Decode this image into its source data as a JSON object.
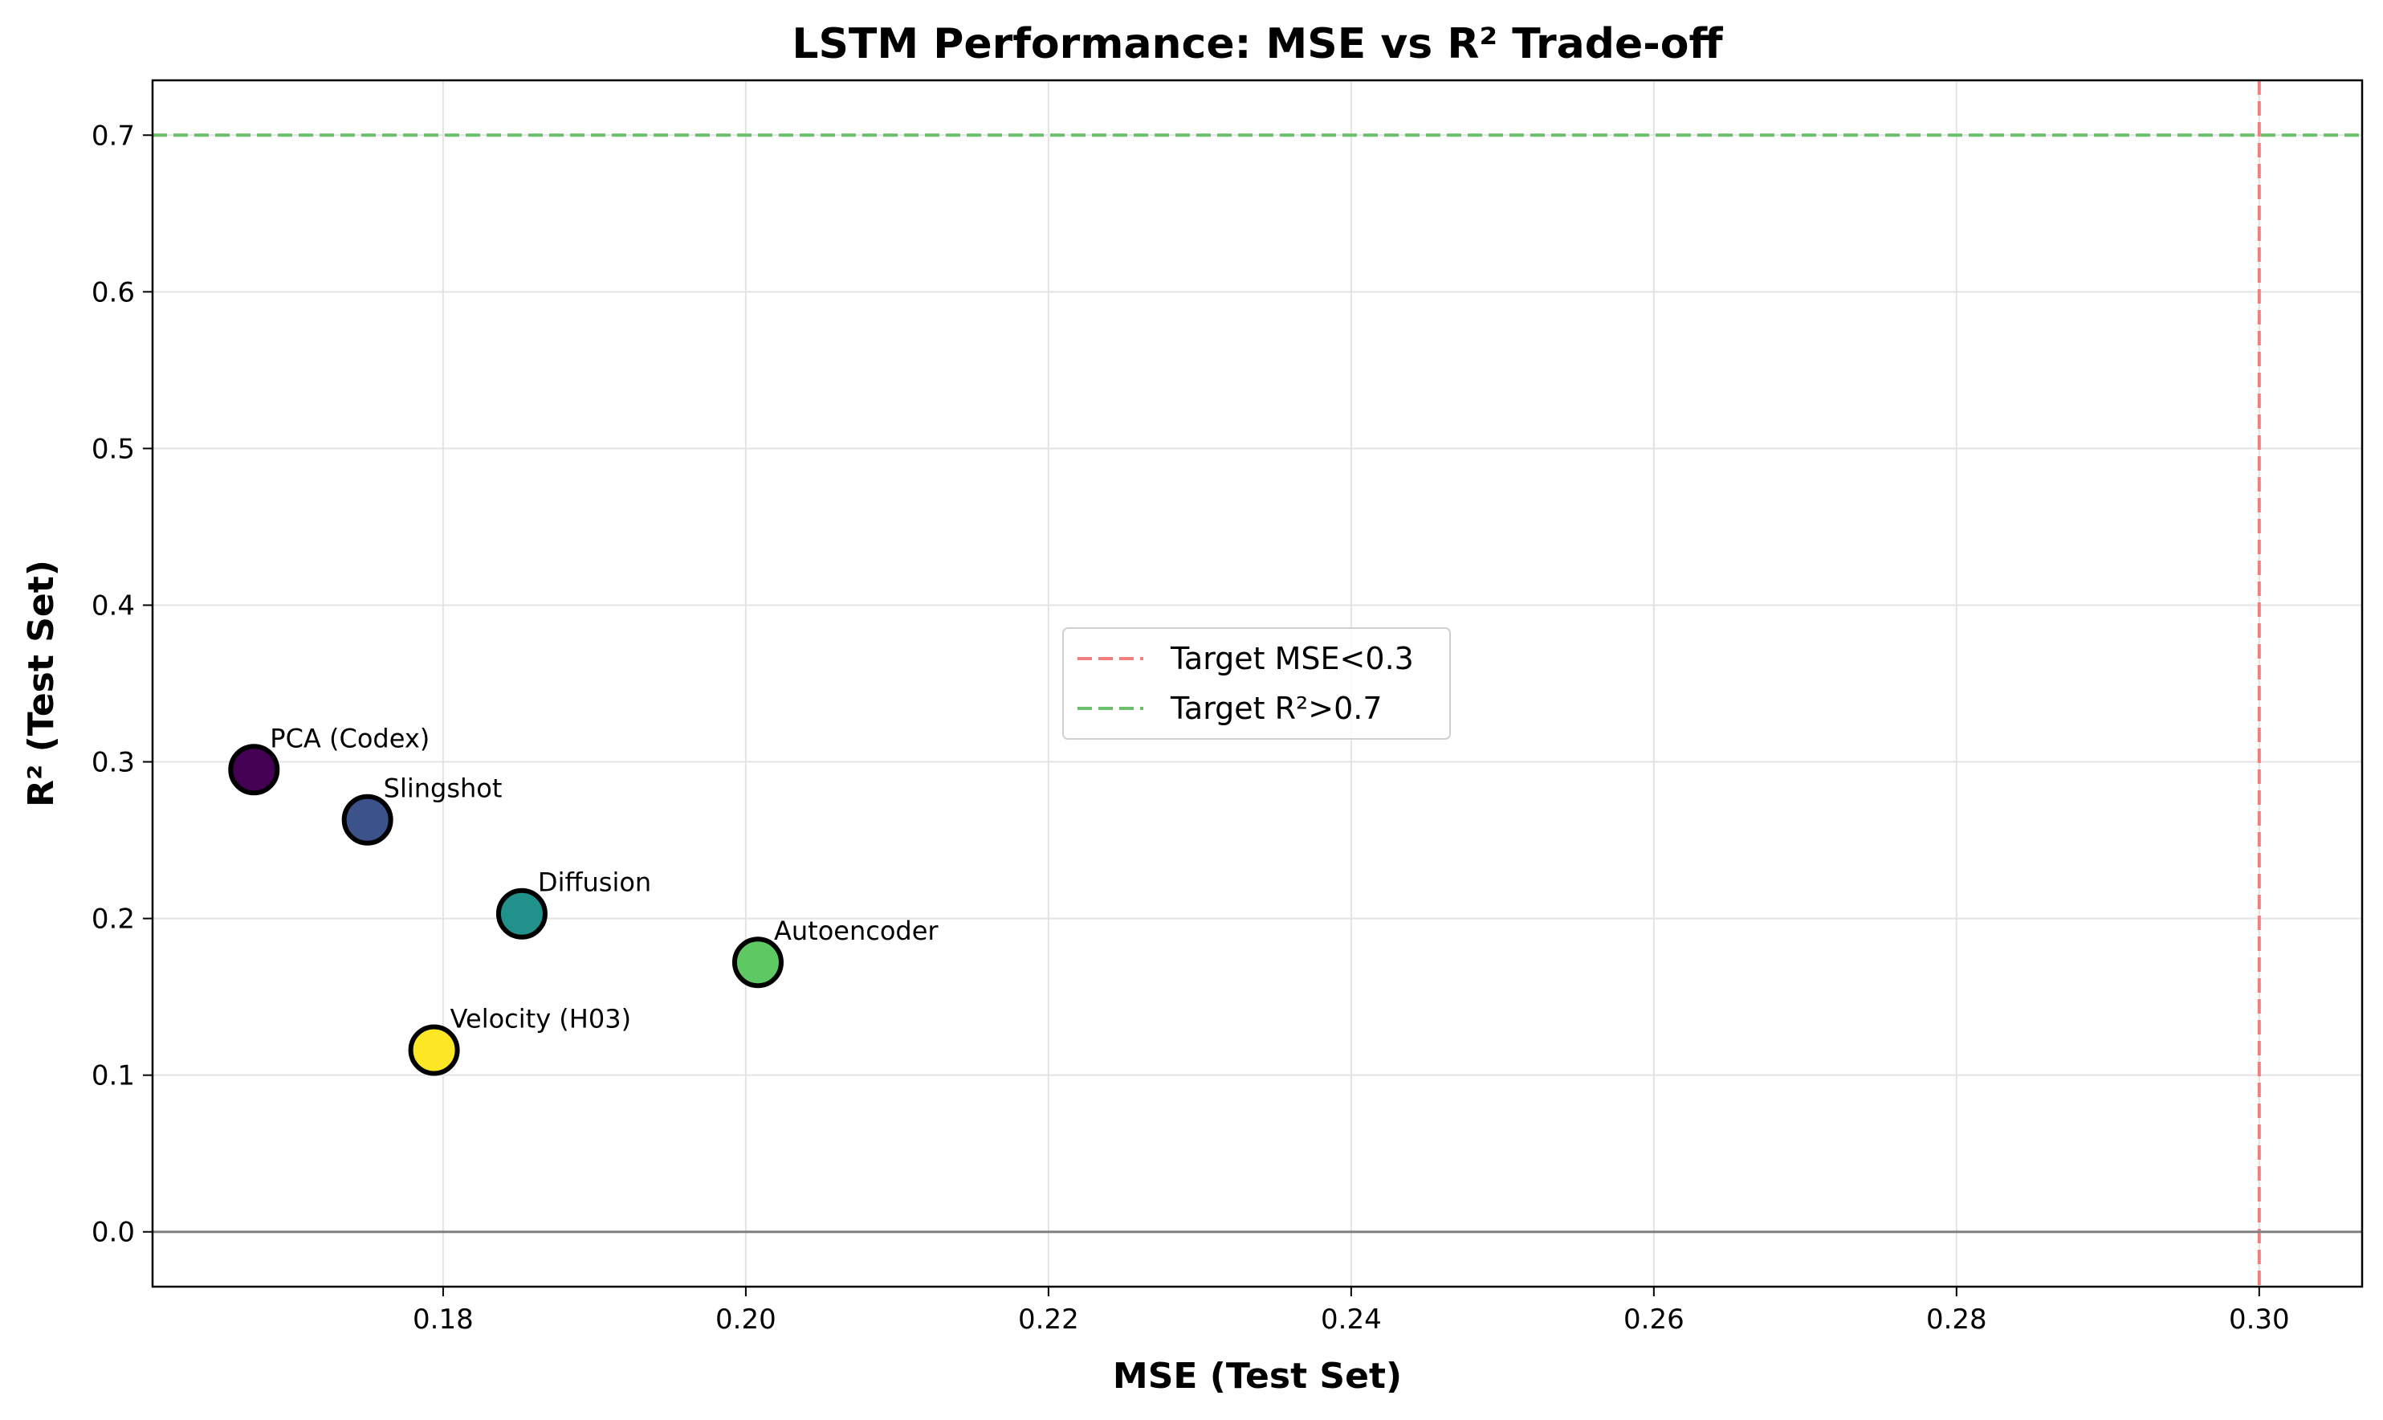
{
  "chart_data": {
    "type": "scatter",
    "title": "LSTM Performance: MSE vs R² Trade-off",
    "xlabel": "MSE (Test Set)",
    "ylabel": "R² (Test Set)",
    "xlim": [
      0.1608,
      0.3068
    ],
    "ylim": [
      -0.035,
      0.735
    ],
    "xticks": [
      0.18,
      0.2,
      0.22,
      0.24,
      0.26,
      0.28,
      0.3
    ],
    "xtick_labels": [
      "0.18",
      "0.20",
      "0.22",
      "0.24",
      "0.26",
      "0.28",
      "0.30"
    ],
    "yticks": [
      0.0,
      0.1,
      0.2,
      0.3,
      0.4,
      0.5,
      0.6,
      0.7
    ],
    "ytick_labels": [
      "0.0",
      "0.1",
      "0.2",
      "0.3",
      "0.4",
      "0.5",
      "0.6",
      "0.7"
    ],
    "grid": true,
    "legend_placement": "center",
    "points": [
      {
        "label": "PCA (Codex)",
        "x": 0.1675,
        "y": 0.295,
        "color": "#440154"
      },
      {
        "label": "Slingshot",
        "x": 0.175,
        "y": 0.263,
        "color": "#3b528b"
      },
      {
        "label": "Diffusion",
        "x": 0.1852,
        "y": 0.203,
        "color": "#21918c"
      },
      {
        "label": "Autoencoder",
        "x": 0.2008,
        "y": 0.172,
        "color": "#5ec962"
      },
      {
        "label": "Velocity (H03)",
        "x": 0.1794,
        "y": 0.116,
        "color": "#fde725"
      }
    ],
    "reference_lines": [
      {
        "orientation": "vertical",
        "value": 0.3,
        "label": "Target MSE<0.3",
        "color": "#f08080",
        "style": "dashed"
      },
      {
        "orientation": "horizontal",
        "value": 0.7,
        "label": "Target R²>0.7",
        "color": "#6cbf6c",
        "style": "dashed"
      },
      {
        "orientation": "horizontal",
        "value": 0.0,
        "label": "",
        "color": "#808080",
        "style": "solid"
      }
    ]
  }
}
